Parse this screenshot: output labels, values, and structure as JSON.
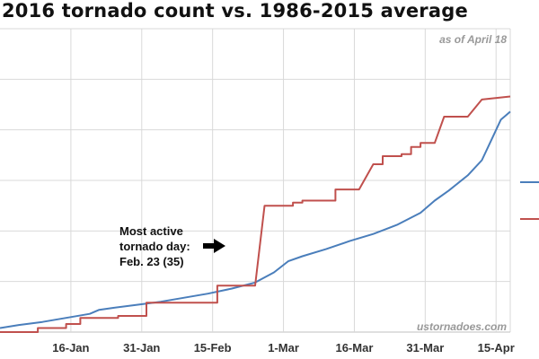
{
  "chart_data": {
    "type": "line",
    "title": "2016 tornado count vs. 1986-2015 average",
    "note": "as of April 18",
    "watermark": "ustornadoes.com",
    "annotation": {
      "lines": [
        "Most active",
        "tornado day:",
        "Feb. 23 (35)"
      ]
    },
    "x_ticks": [
      {
        "day": 16,
        "label": "16-Jan"
      },
      {
        "day": 31,
        "label": "31-Jan"
      },
      {
        "day": 46,
        "label": "15-Feb"
      },
      {
        "day": 61,
        "label": "1-Mar"
      },
      {
        "day": 76,
        "label": "16-Mar"
      },
      {
        "day": 91,
        "label": "31-Mar"
      },
      {
        "day": 106,
        "label": "15-Apr"
      }
    ],
    "xlim": [
      1,
      109
    ],
    "ylim": [
      0,
      300
    ],
    "grid": true,
    "legend": "right, partially cut off",
    "series": [
      {
        "color": "#4a7ebb",
        "points": [
          [
            1,
            4
          ],
          [
            5,
            7
          ],
          [
            10,
            10
          ],
          [
            15,
            14
          ],
          [
            20,
            18
          ],
          [
            22,
            22
          ],
          [
            25,
            24
          ],
          [
            30,
            27
          ],
          [
            35,
            30
          ],
          [
            40,
            34
          ],
          [
            45,
            38
          ],
          [
            50,
            43
          ],
          [
            55,
            49
          ],
          [
            59,
            59
          ],
          [
            62,
            70
          ],
          [
            65,
            75
          ],
          [
            70,
            82
          ],
          [
            75,
            90
          ],
          [
            80,
            97
          ],
          [
            85,
            106
          ],
          [
            90,
            118
          ],
          [
            93,
            130
          ],
          [
            96,
            140
          ],
          [
            100,
            155
          ],
          [
            103,
            170
          ],
          [
            105,
            190
          ],
          [
            107,
            210
          ],
          [
            109,
            218
          ]
        ]
      },
      {
        "color": "#c0504d",
        "points": [
          [
            1,
            0
          ],
          [
            9,
            0
          ],
          [
            9,
            4
          ],
          [
            15,
            4
          ],
          [
            15,
            8
          ],
          [
            18,
            8
          ],
          [
            18,
            14
          ],
          [
            26,
            14
          ],
          [
            26,
            16
          ],
          [
            32,
            16
          ],
          [
            32,
            29
          ],
          [
            47,
            29
          ],
          [
            47,
            46
          ],
          [
            55,
            46
          ],
          [
            57,
            125
          ],
          [
            63,
            125
          ],
          [
            63,
            128
          ],
          [
            65,
            128
          ],
          [
            65,
            130
          ],
          [
            72,
            130
          ],
          [
            72,
            141
          ],
          [
            77,
            141
          ],
          [
            80,
            166
          ],
          [
            82,
            166
          ],
          [
            82,
            174
          ],
          [
            86,
            174
          ],
          [
            86,
            176
          ],
          [
            88,
            176
          ],
          [
            88,
            183
          ],
          [
            90,
            183
          ],
          [
            90,
            187
          ],
          [
            93,
            187
          ],
          [
            95,
            213
          ],
          [
            100,
            213
          ],
          [
            103,
            230
          ],
          [
            109,
            233
          ]
        ]
      }
    ]
  }
}
